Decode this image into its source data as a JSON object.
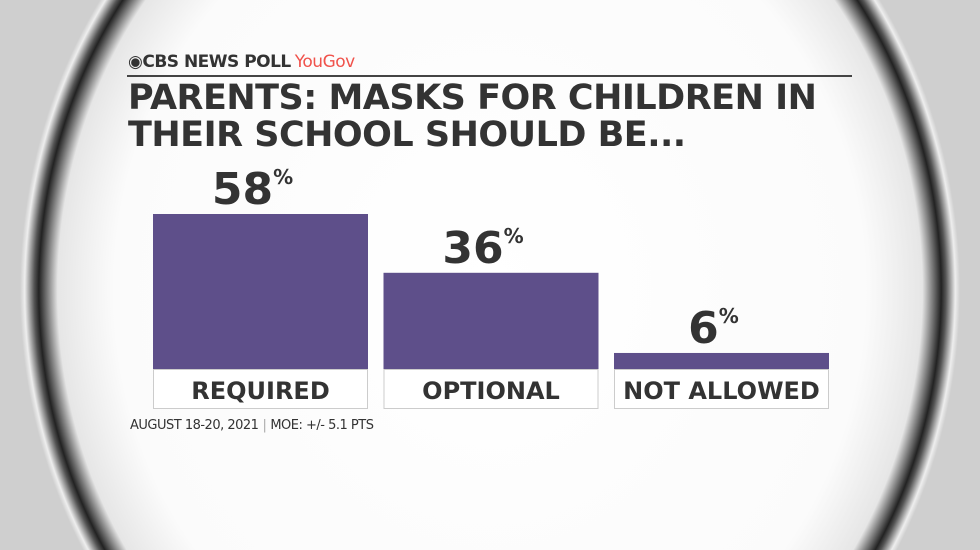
{
  "brand": {
    "name": "CBS NEWS POLL",
    "partner": "YouGov"
  },
  "colors": {
    "bar": "#5e4f8a",
    "partner": "#f0524b"
  },
  "chart_data": {
    "type": "bar",
    "title": "PARENTS: MASKS FOR CHILDREN IN THEIR SCHOOL SHOULD BE...",
    "categories": [
      "REQUIRED",
      "OPTIONAL",
      "NOT ALLOWED"
    ],
    "values": [
      58,
      36,
      6
    ],
    "value_suffix": "%",
    "ylim": [
      0,
      58
    ],
    "grid": false
  },
  "footer": {
    "date": "AUGUST 18-20, 2021",
    "moe": "MOE: +/- 5.1 PTS"
  }
}
